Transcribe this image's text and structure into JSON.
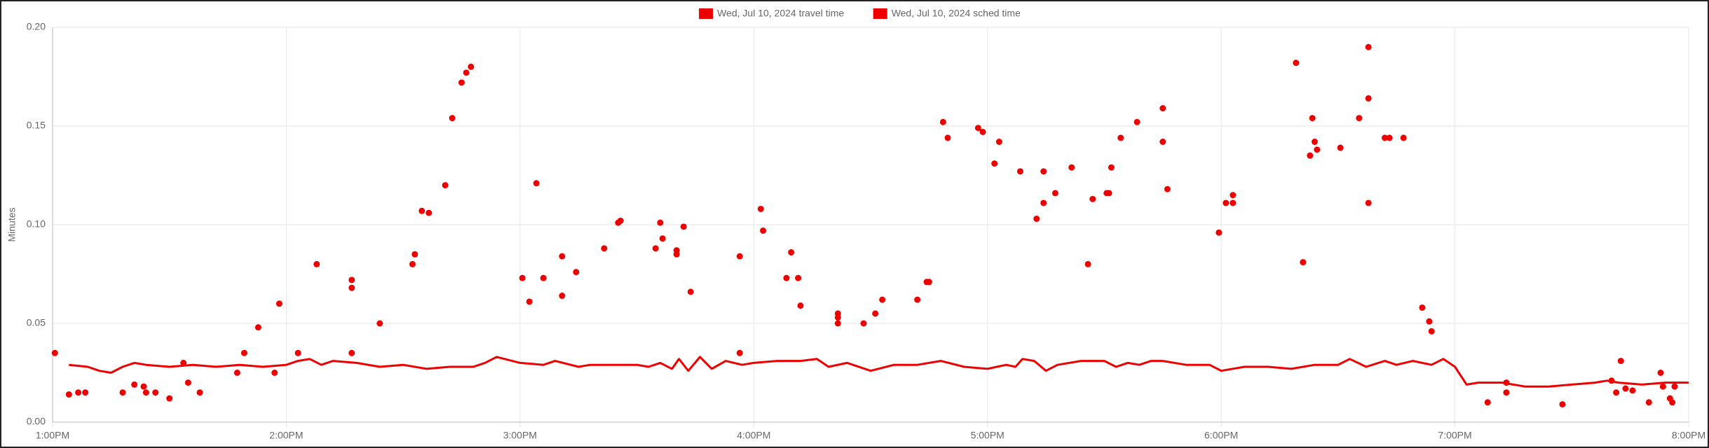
{
  "chart_data": {
    "type": "scatter",
    "y_label": "Minutes",
    "xlim": [
      13,
      20
    ],
    "xticks": [
      {
        "value": 13,
        "label": "1:00PM"
      },
      {
        "value": 14,
        "label": "2:00PM"
      },
      {
        "value": 15,
        "label": "3:00PM"
      },
      {
        "value": 16,
        "label": "4:00PM"
      },
      {
        "value": 17,
        "label": "5:00PM"
      },
      {
        "value": 18,
        "label": "6:00PM"
      },
      {
        "value": 19,
        "label": "7:00PM"
      },
      {
        "value": 20,
        "label": "8:00PM"
      }
    ],
    "ylim": [
      0,
      0.2
    ],
    "yticks": [
      {
        "value": 0,
        "label": "0.00"
      },
      0.05,
      {
        "value": 0.1,
        "label": "0.10"
      },
      0.15,
      {
        "value": 0.2,
        "label": "0.20"
      }
    ],
    "grid": true,
    "legend": "top",
    "series": [
      {
        "name": "Wed, Jul 10, 2024 travel time",
        "color": "#ee0000",
        "type": "scatter",
        "x": [
          13.01,
          13.07,
          13.11,
          13.14,
          13.3,
          13.35,
          13.39,
          13.4,
          13.44,
          13.5,
          13.56,
          13.58,
          13.63,
          13.79,
          13.82,
          13.88,
          13.95,
          13.97,
          14.05,
          14.13,
          14.28,
          14.28,
          14.28,
          14.4,
          14.54,
          14.55,
          14.58,
          14.61,
          14.68,
          14.71,
          14.75,
          14.77,
          14.79,
          15.01,
          15.04,
          15.07,
          15.1,
          15.18,
          15.18,
          15.24,
          15.36,
          15.42,
          15.43,
          15.58,
          15.6,
          15.61,
          15.67,
          15.67,
          15.7,
          15.73,
          15.94,
          15.94,
          16.03,
          16.04,
          16.14,
          16.16,
          16.19,
          16.2,
          16.36,
          16.36,
          16.36,
          16.47,
          16.52,
          16.55,
          16.7,
          16.74,
          16.75,
          16.81,
          16.83,
          16.96,
          16.98,
          17.03,
          17.05,
          17.14,
          17.21,
          17.24,
          17.24,
          17.29,
          17.36,
          17.43,
          17.45,
          17.51,
          17.52,
          17.53,
          17.57,
          17.64,
          17.75,
          17.75,
          17.77,
          17.99,
          18.02,
          18.05,
          18.05,
          18.32,
          18.35,
          18.38,
          18.39,
          18.4,
          18.41,
          18.51,
          18.59,
          18.63,
          18.63,
          18.63,
          18.7,
          18.72,
          18.78,
          18.86,
          18.89,
          18.9,
          19.14,
          19.22,
          19.22,
          19.46,
          19.67,
          19.69,
          19.71,
          19.73,
          19.76,
          19.83,
          19.88,
          19.89,
          19.92,
          19.93,
          19.94
        ],
        "values": [
          0.035,
          0.014,
          0.015,
          0.015,
          0.015,
          0.019,
          0.018,
          0.015,
          0.015,
          0.012,
          0.03,
          0.02,
          0.015,
          0.025,
          0.035,
          0.048,
          0.025,
          0.06,
          0.035,
          0.08,
          0.035,
          0.072,
          0.068,
          0.05,
          0.08,
          0.085,
          0.107,
          0.106,
          0.12,
          0.154,
          0.172,
          0.177,
          0.18,
          0.073,
          0.061,
          0.121,
          0.073,
          0.064,
          0.084,
          0.076,
          0.088,
          0.101,
          0.102,
          0.088,
          0.101,
          0.093,
          0.087,
          0.085,
          0.099,
          0.066,
          0.084,
          0.035,
          0.108,
          0.097,
          0.073,
          0.086,
          0.073,
          0.059,
          0.055,
          0.053,
          0.05,
          0.05,
          0.055,
          0.062,
          0.062,
          0.071,
          0.071,
          0.152,
          0.144,
          0.149,
          0.147,
          0.131,
          0.142,
          0.127,
          0.103,
          0.127,
          0.111,
          0.116,
          0.129,
          0.08,
          0.113,
          0.116,
          0.116,
          0.129,
          0.144,
          0.152,
          0.159,
          0.142,
          0.118,
          0.096,
          0.111,
          0.115,
          0.111,
          0.182,
          0.081,
          0.135,
          0.154,
          0.142,
          0.138,
          0.139,
          0.154,
          0.164,
          0.111,
          0.19,
          0.144,
          0.144,
          0.144,
          0.058,
          0.051,
          0.046,
          0.01,
          0.015,
          0.02,
          0.009,
          0.021,
          0.015,
          0.031,
          0.017,
          0.016,
          0.01,
          0.025,
          0.018,
          0.012,
          0.01,
          0.018
        ]
      },
      {
        "name": "Wed, Jul 10, 2024 sched time",
        "color": "#ee0000",
        "type": "line",
        "x": [
          13.07,
          13.15,
          13.2,
          13.25,
          13.3,
          13.35,
          13.4,
          13.5,
          13.6,
          13.7,
          13.8,
          13.9,
          14.0,
          14.05,
          14.1,
          14.15,
          14.2,
          14.3,
          14.4,
          14.5,
          14.6,
          14.7,
          14.8,
          14.85,
          14.9,
          15.0,
          15.1,
          15.15,
          15.25,
          15.3,
          15.4,
          15.5,
          15.55,
          15.6,
          15.65,
          15.68,
          15.72,
          15.77,
          15.82,
          15.88,
          15.95,
          16.0,
          16.1,
          16.2,
          16.27,
          16.32,
          16.4,
          16.5,
          16.6,
          16.7,
          16.8,
          16.9,
          17.0,
          17.08,
          17.12,
          17.15,
          17.2,
          17.25,
          17.3,
          17.4,
          17.5,
          17.55,
          17.6,
          17.65,
          17.7,
          17.75,
          17.85,
          17.95,
          18.0,
          18.1,
          18.2,
          18.3,
          18.4,
          18.5,
          18.55,
          18.62,
          18.7,
          18.75,
          18.82,
          18.9,
          18.95,
          19.0,
          19.05,
          19.1,
          19.2,
          19.3,
          19.4,
          19.5,
          19.6,
          19.65,
          19.7,
          19.8,
          19.9,
          20.0
        ],
        "values": [
          0.029,
          0.028,
          0.026,
          0.025,
          0.028,
          0.03,
          0.029,
          0.028,
          0.029,
          0.028,
          0.029,
          0.028,
          0.029,
          0.031,
          0.032,
          0.029,
          0.031,
          0.03,
          0.028,
          0.029,
          0.027,
          0.028,
          0.028,
          0.03,
          0.033,
          0.03,
          0.029,
          0.031,
          0.028,
          0.029,
          0.029,
          0.029,
          0.028,
          0.03,
          0.027,
          0.032,
          0.026,
          0.033,
          0.027,
          0.031,
          0.029,
          0.03,
          0.031,
          0.031,
          0.032,
          0.028,
          0.03,
          0.026,
          0.029,
          0.029,
          0.031,
          0.028,
          0.027,
          0.029,
          0.028,
          0.032,
          0.031,
          0.026,
          0.029,
          0.031,
          0.031,
          0.028,
          0.03,
          0.029,
          0.031,
          0.031,
          0.029,
          0.029,
          0.026,
          0.028,
          0.028,
          0.027,
          0.029,
          0.029,
          0.032,
          0.028,
          0.031,
          0.029,
          0.031,
          0.029,
          0.032,
          0.028,
          0.019,
          0.02,
          0.02,
          0.018,
          0.018,
          0.019,
          0.02,
          0.021,
          0.02,
          0.019,
          0.02,
          0.02
        ]
      }
    ]
  }
}
